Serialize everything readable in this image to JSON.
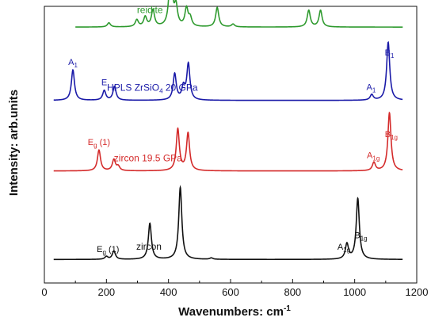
{
  "chart_data": {
    "type": "line",
    "title": "",
    "xlabel": "Wavenumbers: cm",
    "xlabel_superscript": "-1",
    "ylabel": "Intensity: arb.units",
    "xlim": [
      0,
      1200
    ],
    "x_ticks": [
      "0",
      "200",
      "400",
      "600",
      "800",
      "1000",
      "1200"
    ],
    "y_ticks_labeled": false,
    "grid": false,
    "legend": "none",
    "series": [
      {
        "key": "reidite",
        "name": "reidite",
        "name_parts": [
          {
            "t": "reidite"
          }
        ],
        "color": "#2e9a2e",
        "x_range": [
          100,
          1155
        ],
        "baseline": 0.925,
        "peaks": [
          {
            "x": 208,
            "h": 0.015
          },
          {
            "x": 298,
            "h": 0.025
          },
          {
            "x": 325,
            "h": 0.035
          },
          {
            "x": 350,
            "h": 0.06
          },
          {
            "x": 407,
            "h": 0.22
          },
          {
            "x": 424,
            "h": 0.07
          },
          {
            "x": 458,
            "h": 0.065
          },
          {
            "x": 470,
            "h": 0.03
          },
          {
            "x": 557,
            "h": 0.07
          },
          {
            "x": 608,
            "h": 0.01
          },
          {
            "x": 852,
            "h": 0.06
          },
          {
            "x": 890,
            "h": 0.06
          }
        ],
        "peak_labels": []
      },
      {
        "key": "hpls",
        "name": "HPLS ZrSiO4 20 GPa",
        "name_parts": [
          {
            "t": "HPLS ZrSiO"
          },
          {
            "t": "4",
            "sub": true
          },
          {
            "t": "  20 GPa"
          }
        ],
        "color": "#1a1aa8",
        "x_range": [
          30,
          1155
        ],
        "baseline": 0.66,
        "peaks": [
          {
            "x": 92,
            "h": 0.11
          },
          {
            "x": 193,
            "h": 0.035
          },
          {
            "x": 226,
            "h": 0.05
          },
          {
            "x": 420,
            "h": 0.095
          },
          {
            "x": 448,
            "h": 0.045
          },
          {
            "x": 464,
            "h": 0.13
          },
          {
            "x": 1055,
            "h": 0.02
          },
          {
            "x": 1108,
            "h": 0.21
          }
        ],
        "peak_labels": [
          {
            "x": 92,
            "parts": [
              {
                "t": "A"
              },
              {
                "t": "1",
                "sub": true
              }
            ]
          },
          {
            "x": 193,
            "parts": [
              {
                "t": "E"
              }
            ]
          },
          {
            "x": 1053,
            "parts": [
              {
                "t": "A"
              },
              {
                "t": "1",
                "sub": true
              }
            ]
          },
          {
            "x": 1112,
            "parts": [
              {
                "t": "B"
              },
              {
                "t": "1",
                "sub": true
              }
            ]
          }
        ]
      },
      {
        "key": "zircon_19",
        "name": "zircon 19.5 GPa",
        "name_parts": [
          {
            "t": "zircon 19.5 GPa"
          }
        ],
        "color": "#d42a2a",
        "x_range": [
          30,
          1155
        ],
        "baseline": 0.405,
        "peaks": [
          {
            "x": 176,
            "h": 0.075
          },
          {
            "x": 224,
            "h": 0.04
          },
          {
            "x": 238,
            "h": 0.015
          },
          {
            "x": 430,
            "h": 0.15
          },
          {
            "x": 463,
            "h": 0.135
          },
          {
            "x": 1062,
            "h": 0.03
          },
          {
            "x": 1112,
            "h": 0.21
          }
        ],
        "peak_labels": [
          {
            "x": 176,
            "parts": [
              {
                "t": "E"
              },
              {
                "t": "g",
                "sub": true
              },
              {
                "t": " (1)"
              }
            ]
          },
          {
            "x": 1060,
            "parts": [
              {
                "t": "A"
              },
              {
                "t": "1g",
                "sub": true
              }
            ]
          },
          {
            "x": 1118,
            "parts": [
              {
                "t": "B"
              },
              {
                "t": "1g",
                "sub": true
              }
            ]
          }
        ]
      },
      {
        "key": "zircon",
        "name": "zircon",
        "name_parts": [
          {
            "t": "zircon"
          }
        ],
        "color": "#111111",
        "x_range": [
          30,
          1155
        ],
        "baseline": 0.085,
        "peaks": [
          {
            "x": 200,
            "h": 0.01
          },
          {
            "x": 224,
            "h": 0.03
          },
          {
            "x": 340,
            "h": 0.13
          },
          {
            "x": 438,
            "h": 0.26
          },
          {
            "x": 538,
            "h": 0.005
          },
          {
            "x": 975,
            "h": 0.055
          },
          {
            "x": 1010,
            "h": 0.22
          }
        ],
        "peak_labels": [
          {
            "x": 205,
            "parts": [
              {
                "t": "E"
              },
              {
                "t": "g",
                "sub": true
              },
              {
                "t": " (1)"
              }
            ]
          },
          {
            "x": 965,
            "parts": [
              {
                "t": "A"
              },
              {
                "t": "1g",
                "sub": true
              }
            ]
          },
          {
            "x": 1020,
            "parts": [
              {
                "t": "B"
              },
              {
                "t": "1g",
                "sub": true
              }
            ]
          }
        ]
      }
    ]
  }
}
